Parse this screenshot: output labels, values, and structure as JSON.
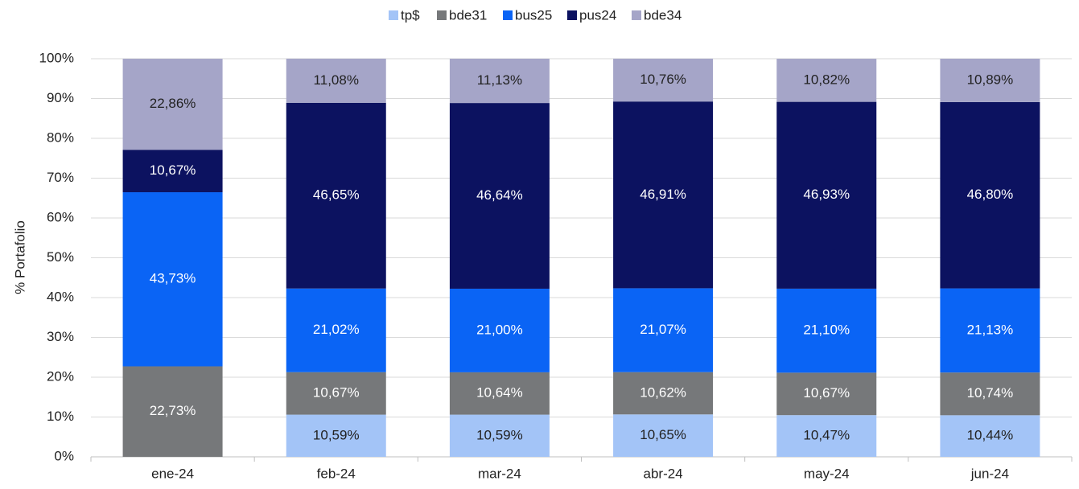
{
  "chart_data": {
    "type": "stacked_bar",
    "y_axis_label": "% Portafolio",
    "categories": [
      "ene-24",
      "feb-24",
      "mar-24",
      "abr-24",
      "may-24",
      "jun-24"
    ],
    "series": [
      {
        "name": "tp$",
        "color": "#a3c4f7",
        "label_color": "#222222",
        "values": [
          null,
          10.59,
          10.59,
          10.65,
          10.47,
          10.44
        ],
        "value_labels": [
          null,
          "10,59%",
          "10,59%",
          "10,65%",
          "10,47%",
          "10,44%"
        ]
      },
      {
        "name": "bde31",
        "color": "#76787a",
        "label_color": "#ffffff",
        "values": [
          22.73,
          10.67,
          10.64,
          10.62,
          10.67,
          10.74
        ],
        "value_labels": [
          "22,73%",
          "10,67%",
          "10,64%",
          "10,62%",
          "10,67%",
          "10,74%"
        ]
      },
      {
        "name": "bus25",
        "color": "#0a64f5",
        "label_color": "#ffffff",
        "values": [
          43.73,
          21.02,
          21.0,
          21.07,
          21.1,
          21.13
        ],
        "value_labels": [
          "43,73%",
          "21,02%",
          "21,00%",
          "21,07%",
          "21,10%",
          "21,13%"
        ]
      },
      {
        "name": "pus24",
        "color": "#0c1260",
        "label_color": "#ffffff",
        "values": [
          10.67,
          46.65,
          46.64,
          46.91,
          46.93,
          46.8
        ],
        "value_labels": [
          "10,67%",
          "46,65%",
          "46,64%",
          "46,91%",
          "46,93%",
          "46,80%"
        ]
      },
      {
        "name": "bde34",
        "color": "#a5a5c8",
        "label_color": "#222222",
        "values": [
          22.86,
          11.08,
          11.13,
          10.76,
          10.82,
          10.89
        ],
        "value_labels": [
          "22,86%",
          "11,08%",
          "11,13%",
          "10,76%",
          "10,82%",
          "10,89%"
        ]
      }
    ],
    "ylim": [
      0,
      100
    ],
    "yticks": [
      {
        "value": 0,
        "label": "0%"
      },
      {
        "value": 10,
        "label": "10%"
      },
      {
        "value": 20,
        "label": "20%"
      },
      {
        "value": 30,
        "label": "30%"
      },
      {
        "value": 40,
        "label": "40%"
      },
      {
        "value": 50,
        "label": "50%"
      },
      {
        "value": 60,
        "label": "60%"
      },
      {
        "value": 70,
        "label": "70%"
      },
      {
        "value": 80,
        "label": "80%"
      },
      {
        "value": 90,
        "label": "90%"
      },
      {
        "value": 100,
        "label": "100%"
      }
    ],
    "grid": true,
    "legend": "top"
  }
}
